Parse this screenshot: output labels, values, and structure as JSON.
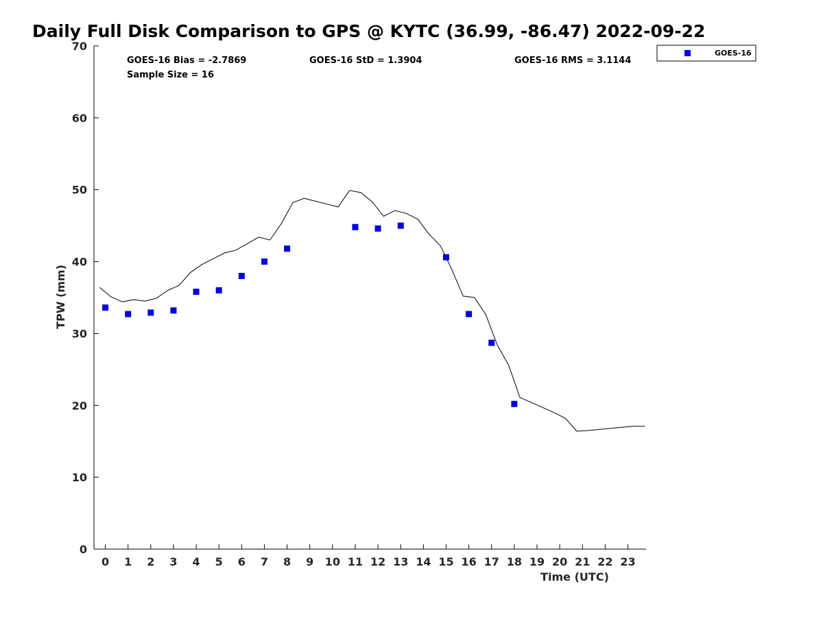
{
  "chart_data": {
    "type": "scatter",
    "title": "Daily Full Disk Comparison to GPS @ KYTC (36.99, -86.47) 2022-09-22",
    "xlabel": "Time (UTC)",
    "ylabel": "TPW (mm)",
    "xlim": [
      -0.5,
      23.8
    ],
    "ylim": [
      0,
      70
    ],
    "x_ticks": [
      "0",
      "1",
      "2",
      "3",
      "4",
      "5",
      "6",
      "7",
      "8",
      "9",
      "10",
      "11",
      "12",
      "13",
      "14",
      "15",
      "16",
      "17",
      "18",
      "19",
      "20",
      "21",
      "22",
      "23"
    ],
    "y_ticks": [
      "0",
      "10",
      "20",
      "30",
      "40",
      "50",
      "60",
      "70"
    ],
    "grid": false,
    "legend_position": "top-right, outside plot",
    "stats": {
      "bias": "GOES-16 Bias = -2.7869",
      "std": "GOES-16 StD = 1.3904",
      "rms": "GOES-16 RMS = 3.1144",
      "sample": "Sample Size = 16"
    },
    "series": [
      {
        "name": "GOES-16",
        "kind": "scatter",
        "marker": "square",
        "color": "#0000dd",
        "x": [
          0,
          1,
          2,
          3,
          4,
          5,
          6,
          7,
          8,
          11,
          12,
          13,
          15,
          16,
          17,
          18
        ],
        "y": [
          33.6,
          32.7,
          32.9,
          33.2,
          35.8,
          36.0,
          38.0,
          40.0,
          41.8,
          44.8,
          44.6,
          45.0,
          40.6,
          32.7,
          28.7,
          20.2
        ]
      },
      {
        "kind": "line",
        "color": "#000000",
        "x": [
          -0.25,
          0.25,
          0.75,
          1.25,
          1.75,
          2.25,
          2.75,
          3.25,
          3.75,
          4.25,
          4.75,
          5.25,
          5.75,
          6.25,
          6.75,
          7.25,
          7.75,
          8.25,
          8.75,
          9.25,
          9.75,
          10.25,
          10.75,
          11.25,
          11.75,
          12.25,
          12.75,
          13.25,
          13.75,
          14.25,
          14.75,
          15.25,
          15.75,
          16.25,
          16.75,
          17.25,
          17.75,
          18.25,
          18.75,
          19.25,
          19.75,
          20.25,
          20.75,
          21.25,
          21.75,
          22.25,
          22.75,
          23.25,
          23.75
        ],
        "y": [
          36.4,
          35.1,
          34.4,
          34.7,
          34.5,
          34.9,
          36.0,
          36.7,
          38.5,
          39.6,
          40.4,
          41.2,
          41.6,
          42.5,
          43.4,
          43.0,
          45.3,
          48.2,
          48.8,
          48.4,
          48.0,
          47.6,
          49.9,
          49.6,
          48.3,
          46.3,
          47.1,
          46.7,
          45.9,
          43.8,
          42.2,
          38.9,
          35.2,
          35.0,
          32.6,
          28.4,
          25.6,
          21.1,
          20.4,
          19.7,
          19.0,
          18.2,
          16.4,
          16.5,
          16.65,
          16.8,
          16.95,
          17.1,
          17.1
        ]
      }
    ]
  }
}
